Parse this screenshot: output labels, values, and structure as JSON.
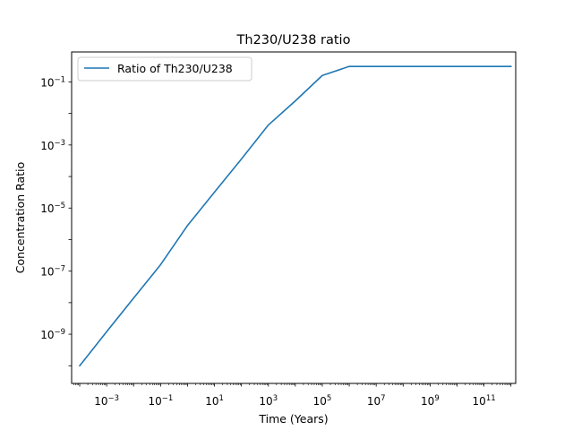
{
  "chart_data": {
    "type": "line",
    "title": "Th230/U238 ratio",
    "xlabel": "Time (Years)",
    "ylabel": "Concentration Ratio",
    "xscale": "log",
    "yscale": "log",
    "xlim": [
      5.01e-05,
      1500000000000
    ],
    "ylim": [
      2.75e-11,
      0.891
    ],
    "x_ticks": [
      {
        "value": 0.001,
        "base": "10",
        "exp": "−3"
      },
      {
        "value": 0.1,
        "base": "10",
        "exp": "−1"
      },
      {
        "value": 10,
        "base": "10",
        "exp": "1"
      },
      {
        "value": 1000,
        "base": "10",
        "exp": "3"
      },
      {
        "value": 100000,
        "base": "10",
        "exp": "5"
      },
      {
        "value": 10000000,
        "base": "10",
        "exp": "7"
      },
      {
        "value": 1000000000,
        "base": "10",
        "exp": "9"
      },
      {
        "value": 100000000000,
        "base": "10",
        "exp": "11"
      }
    ],
    "y_ticks": [
      {
        "value": 1e-09,
        "base": "10",
        "exp": "−9"
      },
      {
        "value": 1e-07,
        "base": "10",
        "exp": "−7"
      },
      {
        "value": 1e-05,
        "base": "10",
        "exp": "−5"
      },
      {
        "value": 0.001,
        "base": "10",
        "exp": "−3"
      },
      {
        "value": 0.1,
        "base": "10",
        "exp": "−1"
      }
    ],
    "legend_position": "top-left",
    "grid": false,
    "series": [
      {
        "name": "Ratio of Th230/U238",
        "color": "#1f77b4",
        "x": [
          0.0001,
          0.001,
          0.01,
          0.1,
          1,
          10,
          100,
          1000,
          10000,
          100000,
          1000000,
          10000000,
          100000000,
          1000000000,
          10000000000,
          100000000000,
          1000000000000
        ],
        "y": [
          1e-10,
          1.2e-09,
          1.4e-08,
          1.6e-07,
          2.8e-06,
          3.2e-05,
          0.00036,
          0.0043,
          0.025,
          0.16,
          0.31,
          0.31,
          0.31,
          0.31,
          0.31,
          0.31,
          0.31
        ]
      }
    ]
  }
}
